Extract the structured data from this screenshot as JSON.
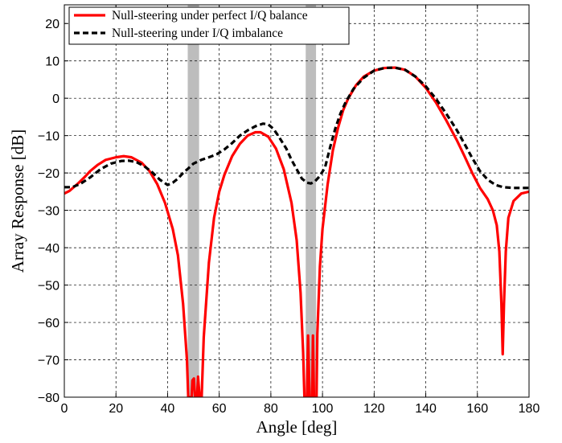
{
  "chart_data": {
    "type": "line",
    "xlabel": "Angle [deg]",
    "ylabel": "Array Response [dB]",
    "xlim": [
      0,
      180
    ],
    "ylim": [
      -80,
      25
    ],
    "xticks": [
      0,
      20,
      40,
      60,
      80,
      100,
      120,
      140,
      160,
      180
    ],
    "yticks": [
      -80,
      -70,
      -60,
      -50,
      -40,
      -30,
      -20,
      -10,
      0,
      10,
      20
    ],
    "grid": true,
    "legend_position": "top-left",
    "shaded_bands": [
      {
        "from": 47.8,
        "to": 52.2,
        "color": "#bdbdbd"
      },
      {
        "from": 93.5,
        "to": 97.5,
        "color": "#bdbdbd"
      }
    ],
    "series": [
      {
        "name": "Null-steering under perfect I/Q balance",
        "color": "#ff0000",
        "style": "solid",
        "points": [
          [
            0,
            -25.5
          ],
          [
            2,
            -24.8
          ],
          [
            5,
            -23
          ],
          [
            8,
            -21
          ],
          [
            10,
            -19.5
          ],
          [
            13,
            -17.8
          ],
          [
            16,
            -16.5
          ],
          [
            20,
            -15.8
          ],
          [
            23,
            -15.5
          ],
          [
            26,
            -15.8
          ],
          [
            30,
            -17.3
          ],
          [
            33,
            -19.5
          ],
          [
            36,
            -23
          ],
          [
            39,
            -28
          ],
          [
            42,
            -35
          ],
          [
            44,
            -42
          ],
          [
            46,
            -55
          ],
          [
            47.5,
            -70
          ],
          [
            48,
            -80
          ],
          [
            49.3,
            -80
          ],
          [
            49.6,
            -75.5
          ],
          [
            50.2,
            -75
          ],
          [
            50.6,
            -80
          ],
          [
            51.4,
            -80
          ],
          [
            51.8,
            -74.5
          ],
          [
            52.4,
            -80
          ],
          [
            53.2,
            -80
          ],
          [
            54,
            -64
          ],
          [
            56,
            -44
          ],
          [
            58,
            -32
          ],
          [
            60,
            -25
          ],
          [
            62,
            -20.5
          ],
          [
            65,
            -15.5
          ],
          [
            68,
            -12.2
          ],
          [
            71,
            -10
          ],
          [
            74,
            -9.1
          ],
          [
            76,
            -9.1
          ],
          [
            79,
            -10.3
          ],
          [
            82,
            -13.5
          ],
          [
            85,
            -19
          ],
          [
            88,
            -28
          ],
          [
            90,
            -38
          ],
          [
            91.5,
            -52
          ],
          [
            92.5,
            -68
          ],
          [
            93,
            -80
          ],
          [
            94,
            -80
          ],
          [
            94.4,
            -63.5
          ],
          [
            95,
            -80
          ],
          [
            96,
            -80
          ],
          [
            96.3,
            -63.5
          ],
          [
            96.7,
            -80
          ],
          [
            97.7,
            -80
          ],
          [
            98,
            -63
          ],
          [
            99,
            -45
          ],
          [
            100,
            -35
          ],
          [
            102,
            -23
          ],
          [
            104,
            -14
          ],
          [
            106,
            -8
          ],
          [
            108,
            -3.2
          ],
          [
            110,
            0
          ],
          [
            113,
            3.5
          ],
          [
            116,
            5.8
          ],
          [
            120,
            7.4
          ],
          [
            124,
            8.1
          ],
          [
            128,
            8.2
          ],
          [
            132,
            7.6
          ],
          [
            136,
            5.8
          ],
          [
            140,
            2.8
          ],
          [
            144,
            -1.2
          ],
          [
            148,
            -6
          ],
          [
            152,
            -11.2
          ],
          [
            155,
            -15.5
          ],
          [
            158,
            -20
          ],
          [
            161,
            -24
          ],
          [
            164,
            -27
          ],
          [
            166,
            -30
          ],
          [
            167.5,
            -34
          ],
          [
            168.5,
            -41
          ],
          [
            169.3,
            -55
          ],
          [
            169.8,
            -68.5
          ],
          [
            170.3,
            -55
          ],
          [
            171,
            -41
          ],
          [
            172,
            -32
          ],
          [
            174,
            -27.5
          ],
          [
            177,
            -25.5
          ],
          [
            180,
            -25
          ]
        ]
      },
      {
        "name": "Null-steering under I/Q imbalance",
        "color": "#000000",
        "style": "dashed",
        "points": [
          [
            0,
            -23.8
          ],
          [
            3,
            -23.8
          ],
          [
            6,
            -23
          ],
          [
            10,
            -21.2
          ],
          [
            14,
            -19
          ],
          [
            18,
            -17.5
          ],
          [
            22,
            -16.8
          ],
          [
            25,
            -16.7
          ],
          [
            28,
            -17.1
          ],
          [
            31,
            -18.2
          ],
          [
            34,
            -19.8
          ],
          [
            37,
            -21.8
          ],
          [
            40,
            -23.2
          ],
          [
            42,
            -22.6
          ],
          [
            44,
            -21.5
          ],
          [
            46,
            -20
          ],
          [
            48,
            -18.8
          ],
          [
            50,
            -17.5
          ],
          [
            53,
            -16.5
          ],
          [
            56,
            -15.8
          ],
          [
            59,
            -15
          ],
          [
            62,
            -13.7
          ],
          [
            65,
            -12
          ],
          [
            68,
            -10
          ],
          [
            71,
            -8.6
          ],
          [
            74,
            -7.5
          ],
          [
            77,
            -6.8
          ],
          [
            79,
            -7
          ],
          [
            81,
            -8.2
          ],
          [
            83,
            -10.2
          ],
          [
            86,
            -13.5
          ],
          [
            88,
            -16.5
          ],
          [
            90,
            -19
          ],
          [
            92,
            -21.5
          ],
          [
            94,
            -22.6
          ],
          [
            95.5,
            -22.8
          ],
          [
            97,
            -22.3
          ],
          [
            99,
            -20.8
          ],
          [
            101,
            -18.5
          ],
          [
            103,
            -13
          ],
          [
            105,
            -8
          ],
          [
            107,
            -4
          ],
          [
            109,
            -1
          ],
          [
            112,
            2.5
          ],
          [
            116,
            5.5
          ],
          [
            120,
            7.4
          ],
          [
            124,
            8.1
          ],
          [
            128,
            8.2
          ],
          [
            132,
            7.6
          ],
          [
            136,
            5.8
          ],
          [
            140,
            3.2
          ],
          [
            144,
            -0.2
          ],
          [
            148,
            -4.2
          ],
          [
            152,
            -8.5
          ],
          [
            155,
            -12.2
          ],
          [
            158,
            -16
          ],
          [
            161,
            -19.5
          ],
          [
            164,
            -21.8
          ],
          [
            167,
            -23.2
          ],
          [
            170,
            -23.8
          ],
          [
            174,
            -24
          ],
          [
            177,
            -24
          ],
          [
            180,
            -24
          ]
        ]
      }
    ]
  }
}
